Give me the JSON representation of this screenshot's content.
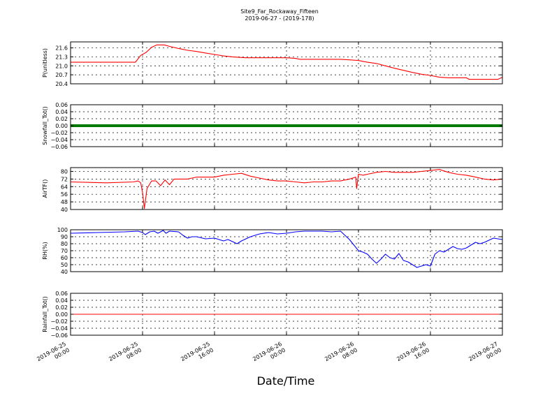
{
  "chart_data": {
    "type": "line",
    "title": "Site9_Far_Rockaway_Fifteen",
    "subtitle": "2019-06-27 - (2019-178)",
    "xlabel": "Date/Time",
    "x_ticks": [
      {
        "t": 0,
        "label": [
          "2019-06-25",
          "00:00"
        ]
      },
      {
        "t": 8,
        "label": [
          "2019-06-25",
          "08:00"
        ]
      },
      {
        "t": 16,
        "label": [
          "2019-06-25",
          "16:00"
        ]
      },
      {
        "t": 24,
        "label": [
          "2019-06-26",
          "00:00"
        ]
      },
      {
        "t": 32,
        "label": [
          "2019-06-26",
          "08:00"
        ]
      },
      {
        "t": 40,
        "label": [
          "2019-06-26",
          "16:00"
        ]
      },
      {
        "t": 48,
        "label": [
          "2019-06-27",
          "00:00"
        ]
      }
    ],
    "xlim": [
      0,
      48
    ],
    "grid": true,
    "panels": [
      {
        "ylabel": "P(unitless)",
        "ylim": [
          20.4,
          21.8
        ],
        "yticks": [
          20.4,
          20.7,
          21.0,
          21.3,
          21.6
        ],
        "ytick_labels": [
          "20.4",
          "20.7",
          "21.0",
          "21.3",
          "21.6"
        ],
        "color": "#ff0000",
        "style": "line",
        "x": [
          0,
          7.2,
          7.8,
          8.4,
          9.0,
          9.6,
          10.4,
          11.0,
          12.0,
          13.0,
          14.0,
          15.0,
          16.0,
          17.0,
          18.0,
          19.0,
          19.5,
          22.0,
          24.0,
          25.0,
          25.5,
          26.0,
          27.0,
          30.0,
          31.0,
          32.0,
          32.5,
          33.0,
          34.0,
          35.0,
          36.0,
          37.0,
          38.0,
          39.0,
          40.0,
          41.0,
          42.0,
          43.0,
          44.0,
          44.3,
          45.0,
          46.0,
          47.5,
          48.0
        ],
        "y": [
          21.12,
          21.12,
          21.35,
          21.45,
          21.62,
          21.7,
          21.7,
          21.65,
          21.58,
          21.52,
          21.48,
          21.43,
          21.38,
          21.33,
          21.3,
          21.28,
          21.27,
          21.27,
          21.27,
          21.25,
          21.22,
          21.22,
          21.22,
          21.22,
          21.2,
          21.18,
          21.15,
          21.12,
          21.08,
          21.0,
          20.92,
          20.85,
          20.78,
          20.72,
          20.68,
          20.62,
          20.6,
          20.6,
          20.6,
          20.55,
          20.55,
          20.55,
          20.55,
          20.62
        ]
      },
      {
        "ylabel": "Snowfall_Tot()",
        "ylim": [
          -0.06,
          0.06
        ],
        "yticks": [
          -0.06,
          -0.04,
          -0.02,
          0.0,
          0.02,
          0.04,
          0.06
        ],
        "ytick_labels": [
          "−0.06",
          "−0.04",
          "−0.02",
          "0.00",
          "0.02",
          "0.04",
          "0.06"
        ],
        "color": "#007a00",
        "style": "thick",
        "x": [
          0,
          48
        ],
        "y": [
          0,
          0
        ]
      },
      {
        "ylabel": "AirTF()",
        "ylim": [
          40,
          84
        ],
        "yticks": [
          40,
          48,
          56,
          64,
          72,
          80
        ],
        "ytick_labels": [
          "40",
          "48",
          "56",
          "64",
          "72",
          "80"
        ],
        "color": "#ff0000",
        "style": "line",
        "x": [
          0,
          4,
          7,
          7.5,
          7.8,
          8.0,
          8.2,
          8.5,
          9.0,
          9.5,
          10.0,
          10.5,
          11.0,
          11.5,
          12.0,
          13.0,
          14.0,
          15.0,
          16.0,
          17.0,
          18.0,
          19.0,
          20.0,
          21.0,
          22.0,
          23.0,
          24.0,
          25.0,
          26.0,
          27.0,
          28.0,
          29.0,
          30.0,
          31.0,
          31.7,
          31.8,
          32.0,
          32.5,
          33.0,
          34.0,
          35.0,
          36.0,
          37.0,
          38.0,
          39.0,
          40.0,
          41.0,
          42.0,
          43.0,
          44.0,
          45.0,
          46.0,
          47.0,
          48.0
        ],
        "y": [
          69,
          68,
          69,
          70,
          68,
          58,
          41,
          62,
          70,
          70,
          65,
          71,
          66,
          72,
          72,
          72,
          74,
          74,
          74,
          76,
          77,
          78,
          75,
          73,
          71,
          70,
          70,
          69,
          68,
          69,
          69,
          70,
          70,
          72,
          74,
          62,
          77,
          76,
          77,
          79,
          80,
          79,
          79,
          79,
          80,
          81,
          82,
          79,
          77,
          76,
          74,
          72,
          71,
          72
        ]
      },
      {
        "ylabel": "RH(%)",
        "ylim": [
          40,
          100
        ],
        "yticks": [
          40,
          50,
          60,
          70,
          80,
          90,
          100
        ],
        "ytick_labels": [
          "40",
          "50",
          "60",
          "70",
          "80",
          "90",
          "100"
        ],
        "color": "#0000ff",
        "style": "line",
        "x": [
          0,
          3,
          6,
          7.5,
          8.0,
          8.3,
          8.8,
          9.3,
          9.7,
          10.0,
          10.3,
          10.6,
          11.0,
          12.0,
          12.5,
          13.0,
          13.5,
          14.0,
          15.0,
          16.0,
          17.0,
          17.5,
          18.0,
          18.5,
          19.0,
          20.0,
          21.0,
          22.0,
          23.0,
          24.0,
          25.0,
          26.0,
          27.0,
          28.0,
          29.0,
          30.0,
          30.5,
          31.0,
          31.5,
          32.0,
          32.5,
          33.0,
          33.5,
          34.0,
          34.5,
          35.0,
          35.5,
          36.0,
          36.5,
          37.0,
          37.5,
          38.0,
          38.5,
          39.0,
          39.5,
          40.0,
          40.5,
          41.0,
          41.5,
          42.0,
          42.5,
          43.0,
          43.5,
          44.0,
          44.5,
          45.0,
          45.5,
          46.0,
          46.5,
          47.0,
          47.5,
          48.0
        ],
        "y": [
          95,
          96,
          97,
          98,
          96,
          93,
          97,
          98,
          95,
          97,
          99,
          95,
          98,
          97,
          92,
          88,
          90,
          90,
          87,
          88,
          84,
          86,
          83,
          80,
          84,
          90,
          94,
          96,
          94,
          95,
          97,
          98,
          98,
          98,
          97,
          98,
          92,
          86,
          78,
          70,
          68,
          65,
          58,
          52,
          58,
          65,
          60,
          58,
          66,
          56,
          54,
          50,
          46,
          48,
          50,
          48,
          65,
          70,
          68,
          72,
          76,
          73,
          72,
          74,
          78,
          82,
          80,
          82,
          85,
          88,
          87,
          86
        ]
      },
      {
        "ylabel": "Rainfall_Tot()",
        "ylim": [
          -0.06,
          0.06
        ],
        "yticks": [
          -0.06,
          -0.04,
          -0.02,
          0.0,
          0.02,
          0.04,
          0.06
        ],
        "ytick_labels": [
          "−0.06",
          "−0.04",
          "−0.02",
          "0.00",
          "0.02",
          "0.04",
          "0.06"
        ],
        "color": "#ff0000",
        "style": "line",
        "x": [
          0,
          48
        ],
        "y": [
          0,
          0
        ]
      }
    ]
  }
}
